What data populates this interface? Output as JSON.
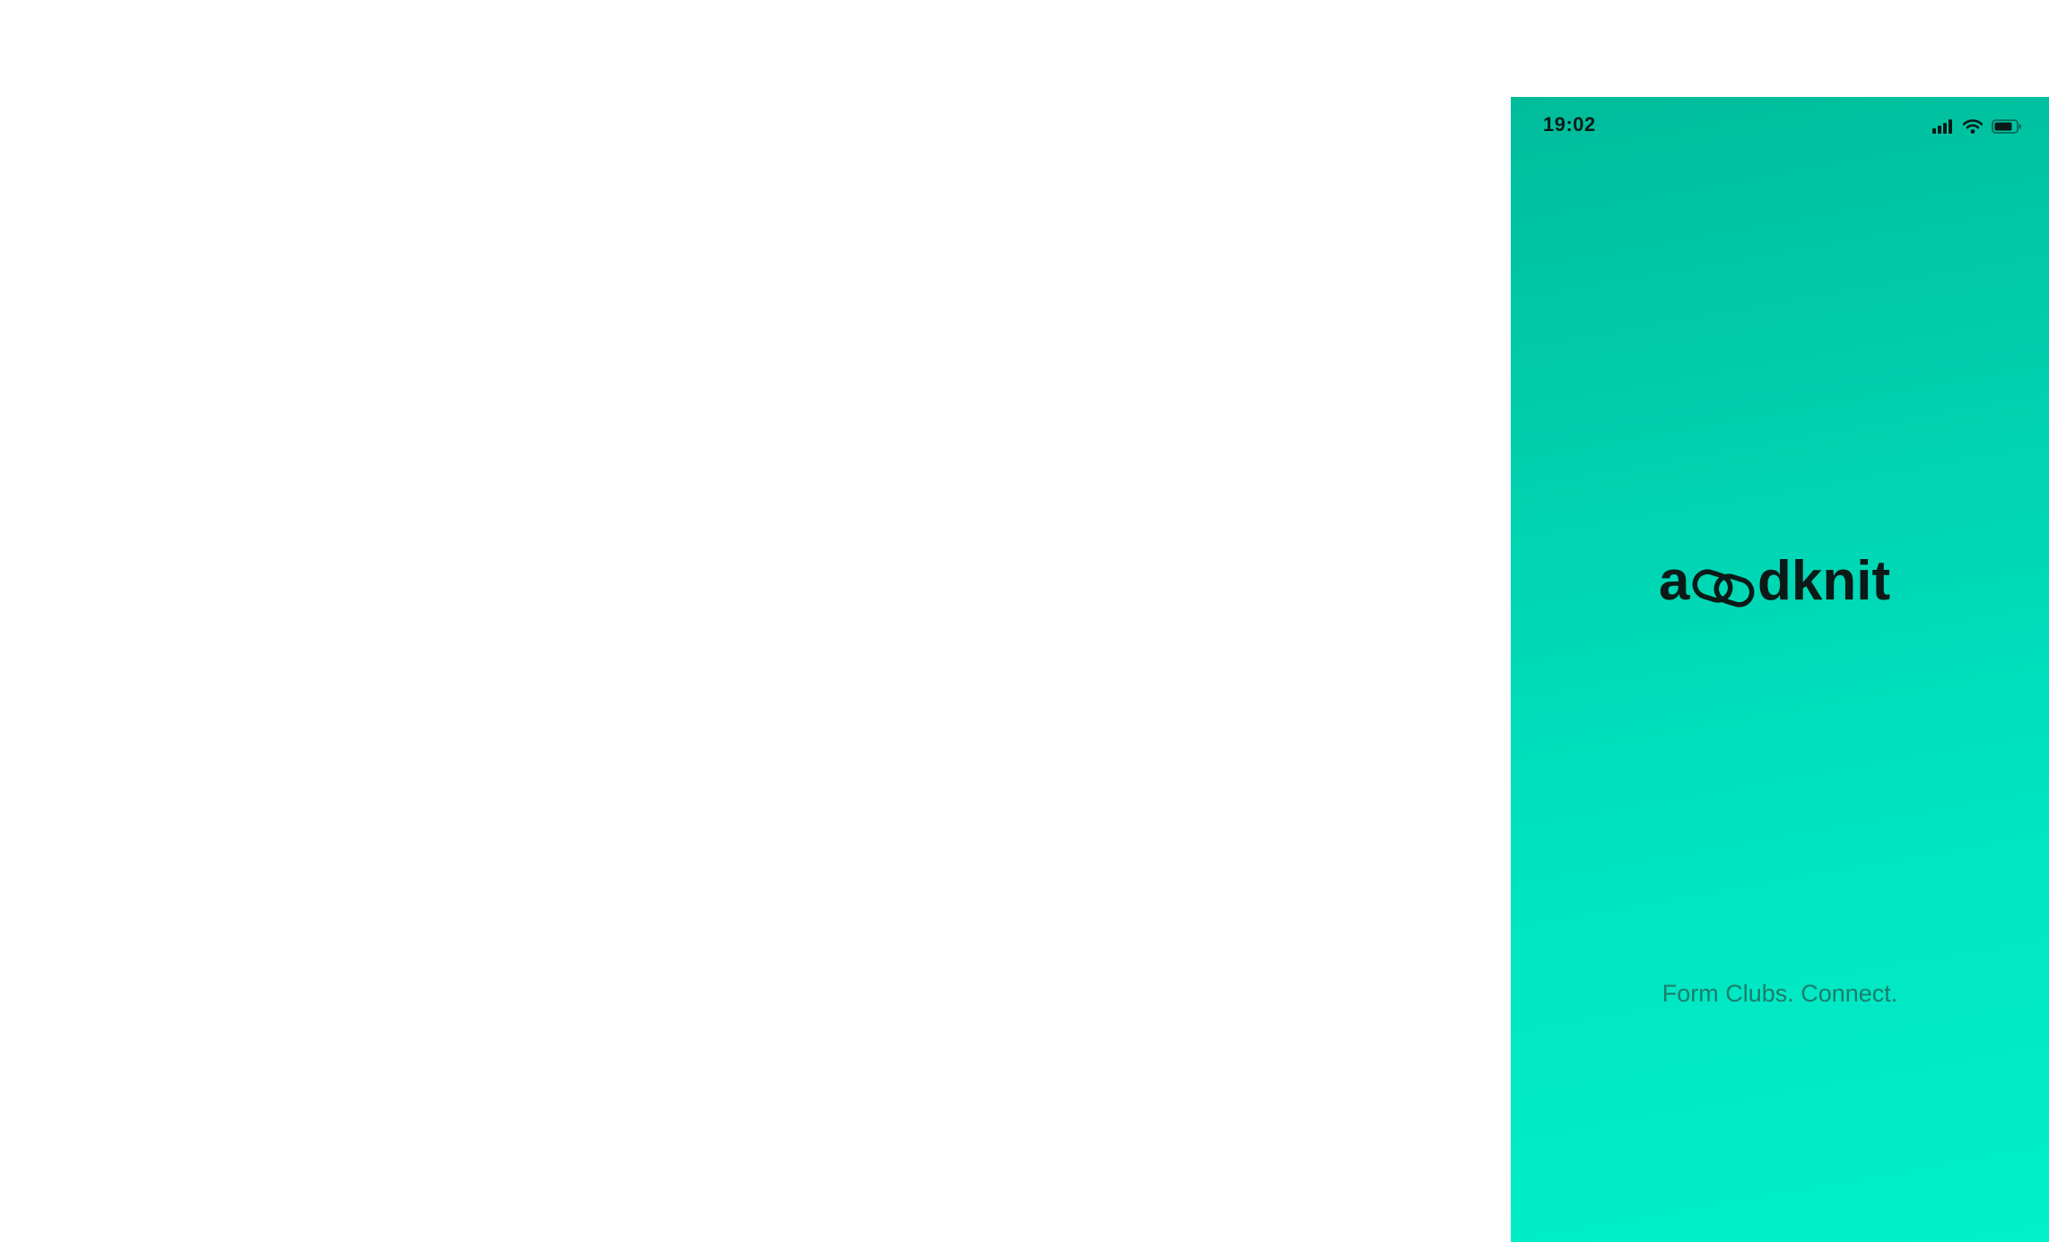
{
  "status_bar": {
    "time": "19:02",
    "icons": [
      "cellular-signal-icon",
      "wifi-icon",
      "battery-icon"
    ]
  },
  "brand": {
    "logo_text": "aoodknit",
    "tagline": "Form Clubs. Connect."
  },
  "colors": {
    "background_top": "#00bc9b",
    "background_bottom": "#00f0c9",
    "logo": "#0b1a17",
    "tagline": "#1c7d6b",
    "page_background": "#ffffff"
  }
}
